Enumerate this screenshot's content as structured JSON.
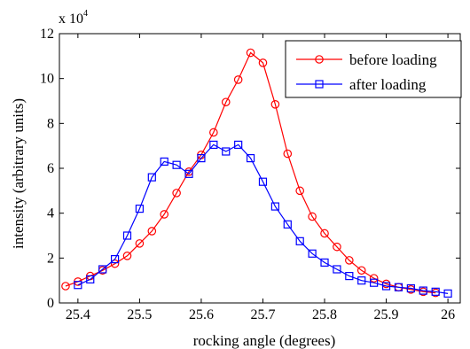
{
  "chart_data": {
    "type": "line",
    "title": "",
    "xlabel": "rocking angle (degrees)",
    "ylabel": "intensity (arbitrary units)",
    "y_multiplier_label": "x 10",
    "y_multiplier_exponent": "4",
    "xlim": [
      25.37,
      26.02
    ],
    "ylim": [
      0,
      12
    ],
    "x_ticks": [
      25.4,
      25.5,
      25.6,
      25.7,
      25.8,
      25.9,
      26
    ],
    "x_tick_labels": [
      "25.4",
      "25.5",
      "25.6",
      "25.7",
      "25.8",
      "25.9",
      "26"
    ],
    "y_ticks": [
      0,
      2,
      4,
      6,
      8,
      10,
      12
    ],
    "y_tick_labels": [
      "0",
      "2",
      "4",
      "6",
      "8",
      "10",
      "12"
    ],
    "grid": false,
    "legend_position": "top-right",
    "series": [
      {
        "name": "before loading",
        "color": "#ff0000",
        "marker": "circle",
        "x": [
          25.38,
          25.4,
          25.42,
          25.44,
          25.46,
          25.48,
          25.5,
          25.52,
          25.54,
          25.56,
          25.58,
          25.6,
          25.62,
          25.64,
          25.66,
          25.68,
          25.7,
          25.72,
          25.74,
          25.76,
          25.78,
          25.8,
          25.82,
          25.84,
          25.86,
          25.88,
          25.9,
          25.92,
          25.94,
          25.96,
          25.98
        ],
        "values": [
          0.75,
          0.95,
          1.2,
          1.45,
          1.75,
          2.1,
          2.65,
          3.2,
          3.95,
          4.9,
          5.85,
          6.6,
          7.6,
          8.95,
          9.95,
          11.15,
          10.7,
          8.85,
          6.65,
          5.0,
          3.85,
          3.1,
          2.5,
          1.9,
          1.45,
          1.1,
          0.85,
          0.7,
          0.6,
          0.5,
          0.45
        ]
      },
      {
        "name": "after loading",
        "color": "#0000ff",
        "marker": "square",
        "x": [
          25.4,
          25.42,
          25.44,
          25.46,
          25.48,
          25.5,
          25.52,
          25.54,
          25.56,
          25.58,
          25.6,
          25.62,
          25.64,
          25.66,
          25.68,
          25.7,
          25.72,
          25.74,
          25.76,
          25.78,
          25.8,
          25.82,
          25.84,
          25.86,
          25.88,
          25.9,
          25.92,
          25.94,
          25.96,
          25.98,
          26.0
        ],
        "values": [
          0.8,
          1.05,
          1.5,
          1.95,
          3.0,
          4.2,
          5.6,
          6.3,
          6.15,
          5.75,
          6.45,
          7.05,
          6.75,
          7.05,
          6.45,
          5.4,
          4.3,
          3.5,
          2.75,
          2.2,
          1.8,
          1.5,
          1.2,
          1.0,
          0.9,
          0.75,
          0.7,
          0.65,
          0.55,
          0.5,
          0.42
        ]
      }
    ]
  }
}
